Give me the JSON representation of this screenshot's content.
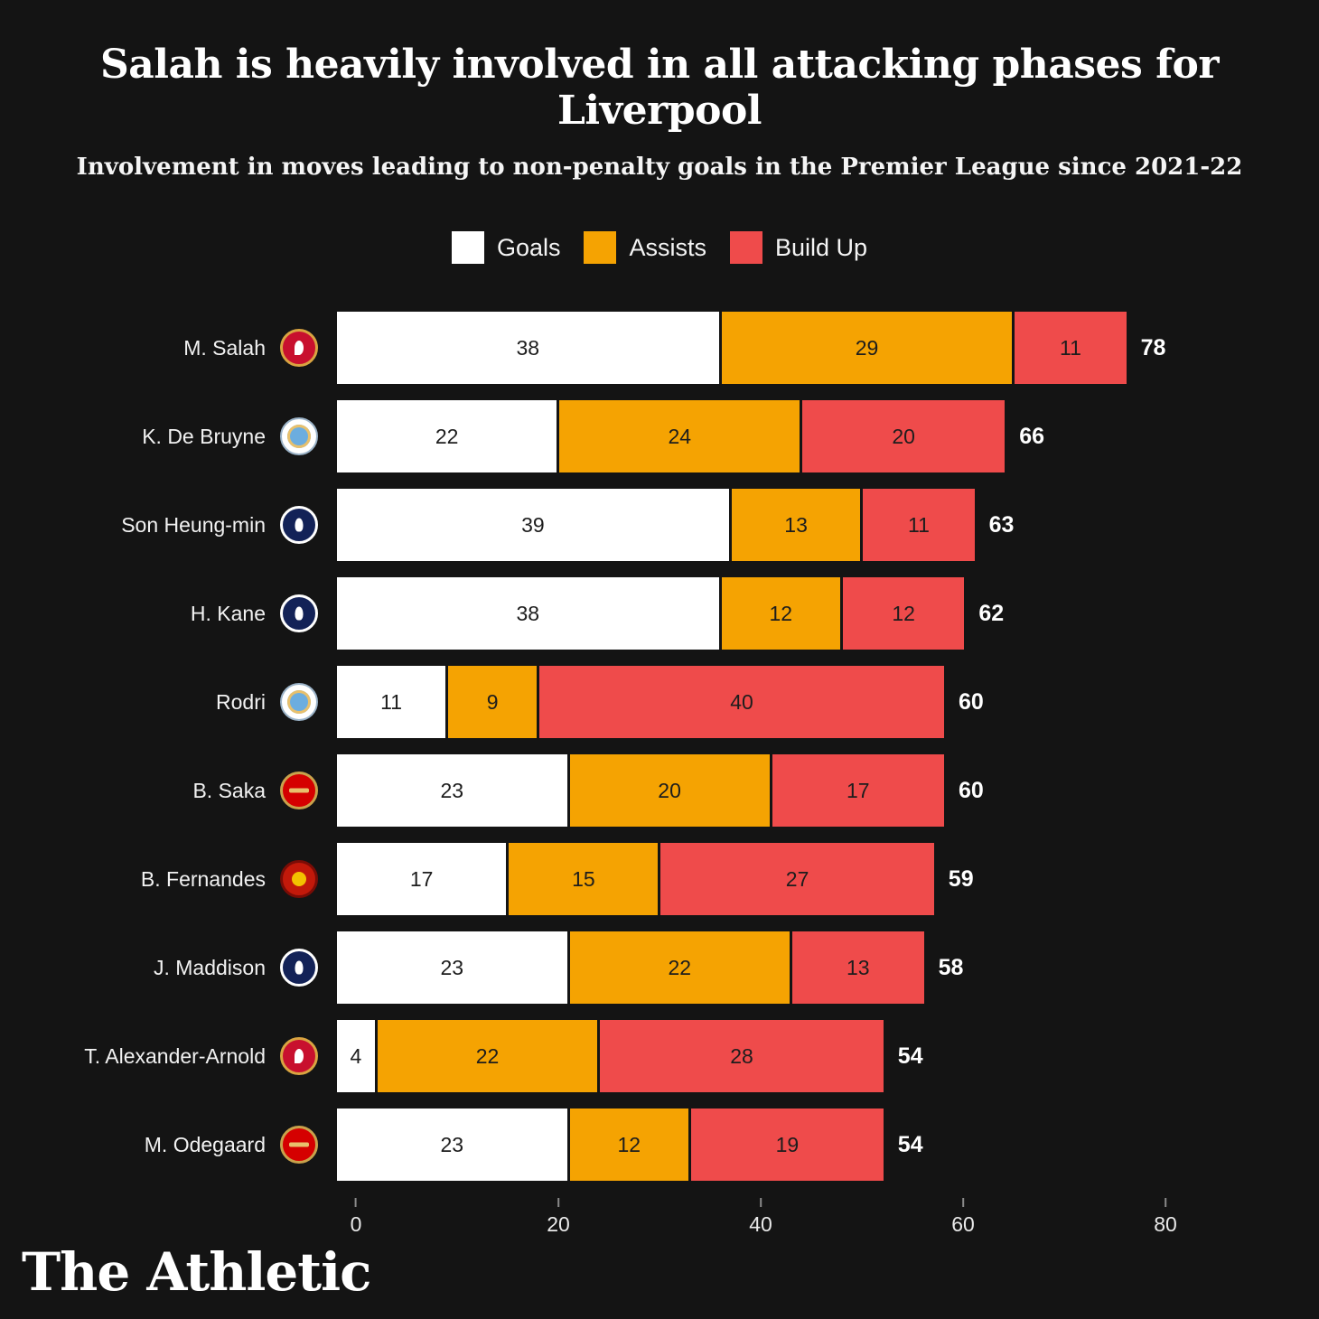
{
  "title": "Salah is heavily involved in all attacking phases for Liverpool",
  "subtitle": "Involvement in moves leading to non-penalty goals in the Premier League since 2021-22",
  "colors": {
    "background": "#141414",
    "goals": "#ffffff",
    "assists": "#f5a302",
    "build_up": "#ef4b4b"
  },
  "legend": [
    {
      "label": "Goals",
      "color": "#ffffff"
    },
    {
      "label": "Assists",
      "color": "#f5a302"
    },
    {
      "label": "Build Up",
      "color": "#ef4b4b"
    }
  ],
  "chart_data": {
    "type": "bar",
    "orientation": "horizontal",
    "stacked": true,
    "title": "Salah is heavily involved in all attacking phases for Liverpool",
    "subtitle": "Involvement in moves leading to non-penalty goals in the Premier League since 2021-22",
    "categories": [
      "M. Salah",
      "K. De Bruyne",
      "Son Heung-min",
      "H. Kane",
      "Rodri",
      "B. Saka",
      "B. Fernandes",
      "J. Maddison",
      "T. Alexander-Arnold",
      "M. Odegaard"
    ],
    "clubs": [
      "liverpool",
      "man-city",
      "tottenham",
      "tottenham",
      "man-city",
      "arsenal",
      "man-utd",
      "tottenham",
      "liverpool",
      "arsenal"
    ],
    "series": [
      {
        "name": "Goals",
        "values": [
          38,
          22,
          39,
          38,
          11,
          23,
          17,
          23,
          4,
          23
        ]
      },
      {
        "name": "Assists",
        "values": [
          29,
          24,
          13,
          12,
          9,
          20,
          15,
          22,
          22,
          12
        ]
      },
      {
        "name": "Build Up",
        "values": [
          11,
          20,
          11,
          12,
          40,
          17,
          27,
          13,
          28,
          19
        ]
      }
    ],
    "totals": [
      78,
      66,
      63,
      62,
      60,
      60,
      59,
      58,
      54,
      54
    ],
    "x_ticks": [
      0,
      20,
      40,
      60,
      80
    ],
    "xlim": [
      0,
      80
    ],
    "legend_position": "top",
    "grid": false
  },
  "footer": {
    "brand": "The Athletic"
  }
}
